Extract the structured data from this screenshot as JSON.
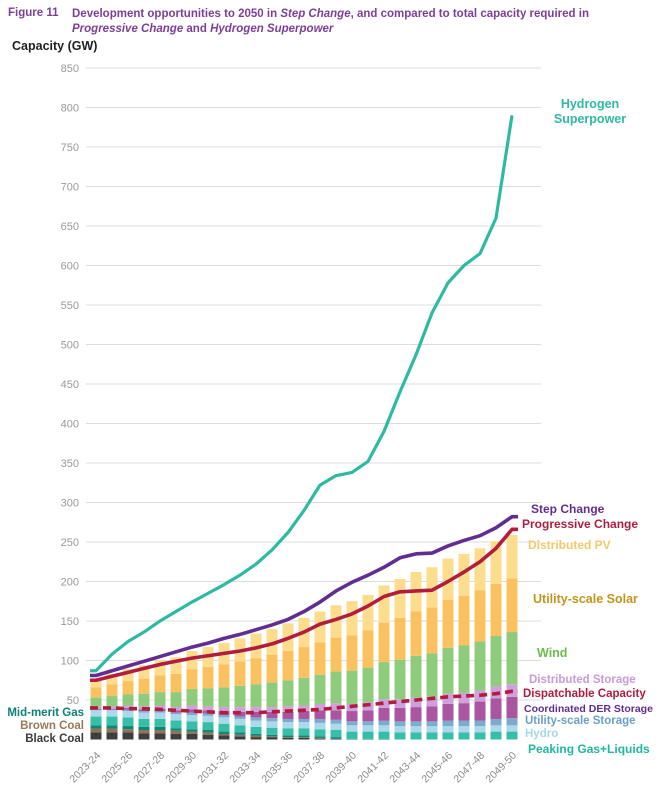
{
  "figure": {
    "label": "Figure 11",
    "title_segments": [
      {
        "text": "Development opportunities to 2050 in ",
        "italic": false
      },
      {
        "text": "Step Change",
        "italic": true
      },
      {
        "text": ", and compared to total capacity required in",
        "italic": false
      },
      {
        "text": "Progressive Change",
        "italic": true,
        "break_before": true
      },
      {
        "text": " and ",
        "italic": false
      },
      {
        "text": "Hydrogen Superpower",
        "italic": true
      }
    ]
  },
  "axis": {
    "y_title": "Capacity (GW)",
    "y_ticks": [
      850,
      800,
      750,
      700,
      650,
      600,
      550,
      500,
      450,
      400,
      350,
      300,
      250,
      200,
      150,
      100,
      50
    ],
    "y_unit": "GW"
  },
  "chart_data": {
    "type": "bar",
    "subtype": "stacked-bars-with-overlay-lines",
    "title": "Development opportunities to 2050 in Step Change, and compared to total capacity required in Progressive Change and Hydrogen Superpower",
    "ylabel": "Capacity (GW)",
    "ylim": [
      0,
      850
    ],
    "grid": "horizontal",
    "x": [
      "2023-24",
      "2024-25",
      "2025-26",
      "2026-27",
      "2027-28",
      "2028-29",
      "2029-30",
      "2030-31",
      "2031-32",
      "2032-33",
      "2033-34",
      "2034-35",
      "2035-36",
      "2036-37",
      "2037-38",
      "2038-39",
      "2039-40",
      "2040-41",
      "2041-42",
      "2042-43",
      "2043-44",
      "2044-45",
      "2045-46",
      "2046-47",
      "2047-48",
      "2048-49",
      "2049-50"
    ],
    "x_tick_labels": [
      "2023-24",
      "2025-26",
      "2027-28",
      "2029-30",
      "2031-32",
      "2033-34",
      "2035-36",
      "2037-38",
      "2039-40",
      "2041-42",
      "2043-44",
      "2045-46",
      "2047-48",
      "2049-50"
    ],
    "stacked_series": [
      {
        "name": "Black Coal",
        "color": "#3e3e3e",
        "values": [
          9,
          9,
          9,
          8,
          8,
          7,
          7,
          6,
          5,
          4,
          3,
          3,
          2,
          2,
          1,
          1,
          0,
          0,
          0,
          0,
          0,
          0,
          0,
          0,
          0,
          0,
          0
        ]
      },
      {
        "name": "Brown Coal",
        "color": "#8f7355",
        "values": [
          5,
          5,
          4,
          4,
          4,
          4,
          3,
          3,
          2,
          2,
          2,
          1,
          1,
          1,
          1,
          0,
          0,
          0,
          0,
          0,
          0,
          0,
          0,
          0,
          0,
          0,
          0
        ]
      },
      {
        "name": "Mid-merit Gas",
        "color": "#0f8478",
        "values": [
          4,
          4,
          4,
          4,
          4,
          3,
          3,
          3,
          3,
          3,
          2,
          2,
          2,
          2,
          2,
          2,
          1,
          1,
          1,
          0,
          0,
          0,
          0,
          0,
          0,
          0,
          0
        ]
      },
      {
        "name": "Peaking Gas+Liquids",
        "color": "#36bfa8",
        "values": [
          11,
          11,
          11,
          10,
          10,
          10,
          10,
          10,
          10,
          9,
          9,
          9,
          9,
          9,
          9,
          9,
          9,
          9,
          9,
          9,
          9,
          9,
          9,
          9,
          9,
          10,
          10
        ]
      },
      {
        "name": "Hydro",
        "color": "#a9d9ea",
        "values": [
          8,
          8,
          8,
          8,
          8,
          8,
          8,
          8,
          8,
          8,
          8,
          8,
          8,
          8,
          8,
          8,
          8,
          8,
          8,
          8,
          8,
          8,
          8,
          8,
          8,
          8,
          8
        ]
      },
      {
        "name": "Utility-scale Storage",
        "color": "#7cabcd",
        "values": [
          1,
          1,
          2,
          2,
          2,
          2,
          3,
          3,
          3,
          3,
          4,
          4,
          4,
          4,
          5,
          5,
          5,
          5,
          6,
          6,
          6,
          6,
          7,
          7,
          7,
          8,
          9
        ]
      },
      {
        "name": "Coordinated DER Storage",
        "color": "#a9559f",
        "values": [
          1,
          1,
          2,
          2,
          3,
          3,
          4,
          4,
          5,
          6,
          7,
          8,
          9,
          10,
          11,
          12,
          13,
          14,
          16,
          17,
          18,
          19,
          21,
          22,
          24,
          26,
          27
        ]
      },
      {
        "name": "Distributed Storage",
        "color": "#cfa0dc",
        "values": [
          3,
          3,
          3,
          4,
          4,
          4,
          5,
          5,
          5,
          6,
          6,
          6,
          7,
          7,
          8,
          9,
          9,
          10,
          11,
          11,
          12,
          12,
          13,
          13,
          14,
          15,
          16
        ]
      },
      {
        "name": "Wind",
        "color": "#8ecb7d",
        "values": [
          11,
          13,
          14,
          16,
          17,
          19,
          21,
          23,
          25,
          27,
          29,
          31,
          33,
          35,
          37,
          40,
          42,
          44,
          47,
          50,
          53,
          55,
          58,
          60,
          62,
          64,
          66
        ]
      },
      {
        "name": "Utility-scale Solar",
        "color": "#f9c25e",
        "values": [
          13,
          15,
          17,
          19,
          21,
          23,
          25,
          27,
          29,
          31,
          33,
          35,
          37,
          39,
          41,
          43,
          45,
          47,
          50,
          53,
          56,
          58,
          61,
          63,
          65,
          66,
          68
        ]
      },
      {
        "name": "Distributed PV",
        "color": "#fcdc8d",
        "values": [
          11,
          13,
          15,
          17,
          19,
          21,
          23,
          25,
          27,
          29,
          31,
          33,
          35,
          37,
          39,
          41,
          43,
          45,
          47,
          49,
          50,
          51,
          52,
          53,
          53,
          54,
          55
        ]
      }
    ],
    "line_series": [
      {
        "name": "Hydrogen Superpower",
        "color": "#2ebaa2",
        "dashed": false,
        "values": [
          87,
          108,
          124,
          136,
          150,
          162,
          174,
          185,
          196,
          208,
          222,
          240,
          262,
          290,
          322,
          334,
          338,
          352,
          390,
          440,
          487,
          540,
          578,
          600,
          615,
          660,
          790
        ]
      },
      {
        "name": "Step Change",
        "color": "#622d90",
        "dashed": false,
        "values": [
          81,
          87,
          93,
          99,
          105,
          111,
          117,
          122,
          128,
          133,
          139,
          145,
          152,
          162,
          174,
          188,
          199,
          208,
          218,
          230,
          235,
          236,
          245,
          252,
          258,
          268,
          282
        ]
      },
      {
        "name": "Progressive Change",
        "color": "#b01d3e",
        "dashed": false,
        "values": [
          75,
          80,
          85,
          90,
          95,
          99,
          103,
          106,
          109,
          112,
          116,
          121,
          128,
          136,
          146,
          152,
          159,
          169,
          181,
          187,
          188,
          189,
          200,
          212,
          225,
          242,
          266
        ]
      },
      {
        "name": "Dispatchable Capacity",
        "color": "#b01d3e",
        "dashed": true,
        "values": [
          40,
          40,
          39,
          39,
          38,
          37,
          36,
          35,
          34,
          34,
          34,
          35,
          36,
          37,
          38,
          40,
          42,
          44,
          46,
          48,
          50,
          52,
          54,
          55,
          56,
          58,
          61
        ]
      }
    ],
    "legend_right": [
      {
        "text": "Hydrogen Superpower",
        "color": "#2ebaa2"
      },
      {
        "text": "Step Change",
        "color": "#622d90"
      },
      {
        "text": "Progressive Change",
        "color": "#b01d3e"
      },
      {
        "text": "Distributed PV",
        "color": "#f6c868"
      },
      {
        "text": "Utility-scale Solar",
        "color": "#c4951b"
      },
      {
        "text": "Wind",
        "color": "#69bf49"
      },
      {
        "text": "Distributed Storage",
        "color": "#c79ad8"
      },
      {
        "text": "Dispatchable Capacity",
        "color": "#b01d3e"
      },
      {
        "text": "Coordinated DER Storage",
        "color": "#622d90"
      },
      {
        "text": "Utility-scale Storage",
        "color": "#6d9fc6"
      },
      {
        "text": "Hydro",
        "color": "#a5d8ea"
      },
      {
        "text": "Peaking Gas+Liquids",
        "color": "#21b79e"
      }
    ],
    "legend_left": [
      {
        "text": "Mid-merit Gas",
        "color": "#0e8276"
      },
      {
        "text": "Brown Coal",
        "color": "#97795a"
      },
      {
        "text": "Black Coal",
        "color": "#3b3b3b"
      }
    ]
  }
}
